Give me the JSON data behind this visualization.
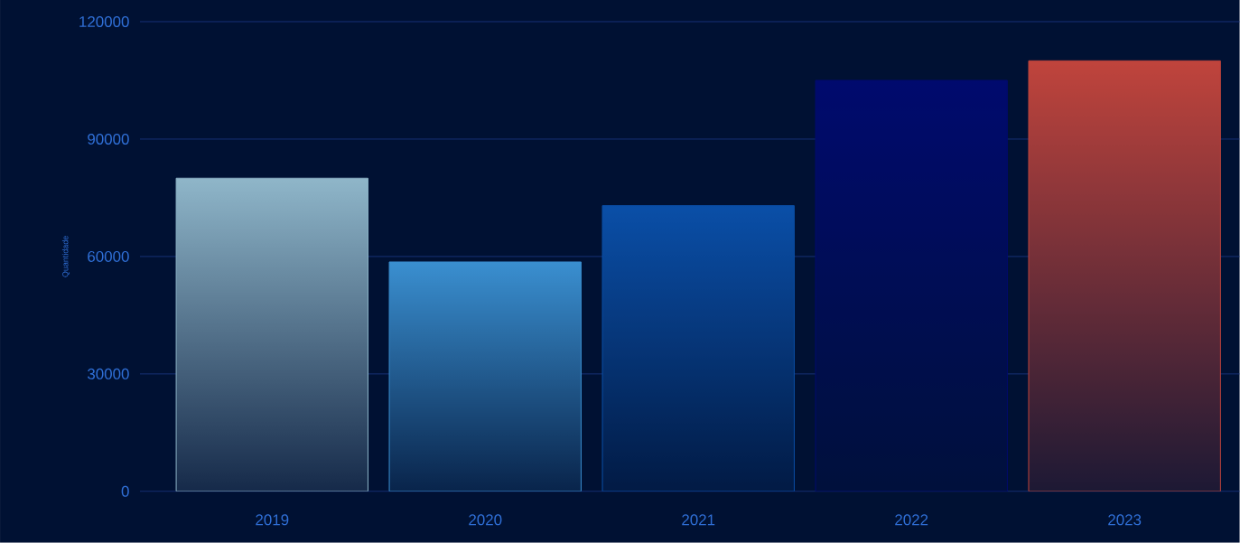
{
  "chart_data": {
    "type": "bar",
    "ylabel": "Quantidade",
    "categories": [
      "2019",
      "2020",
      "2021",
      "2022",
      "2023"
    ],
    "values": [
      80000,
      58600,
      73000,
      105000,
      110000
    ],
    "colors": [
      "#8fb6c9",
      "#3a8fd0",
      "#0a4fa8",
      "#000a6e",
      "#c0443c"
    ],
    "ylim": [
      0,
      120000
    ],
    "yticks": [
      0,
      30000,
      60000,
      90000,
      120000
    ],
    "grid": "y"
  }
}
